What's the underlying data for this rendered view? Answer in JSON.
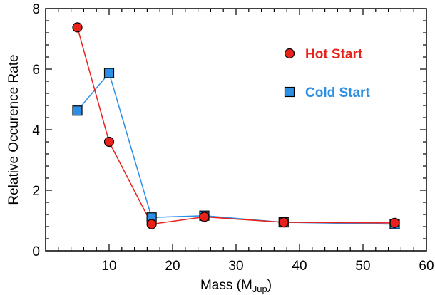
{
  "chart_data": {
    "type": "line",
    "xlabel": "Mass (M",
    "xlabel_sub": "Jup",
    "xlabel_end": ")",
    "ylabel": "Relative Occurence Rate",
    "xlim": [
      0,
      60
    ],
    "ylim": [
      0,
      8
    ],
    "xticks": [
      10,
      20,
      30,
      40,
      50,
      60
    ],
    "yticks": [
      0,
      2,
      4,
      6,
      8
    ],
    "grid": false,
    "legend_position": "top-right",
    "series": [
      {
        "name": "Hot Start",
        "marker": "circle",
        "color": "#e8211b",
        "x": [
          5,
          10,
          16.7,
          25,
          37.5,
          55
        ],
        "y": [
          7.38,
          3.6,
          0.88,
          1.12,
          0.94,
          0.92
        ]
      },
      {
        "name": "Cold Start",
        "marker": "square",
        "color": "#2c8fe6",
        "x": [
          5,
          10,
          16.7,
          25,
          37.5,
          55
        ],
        "y": [
          4.63,
          5.87,
          1.1,
          1.16,
          0.94,
          0.88
        ]
      }
    ]
  }
}
